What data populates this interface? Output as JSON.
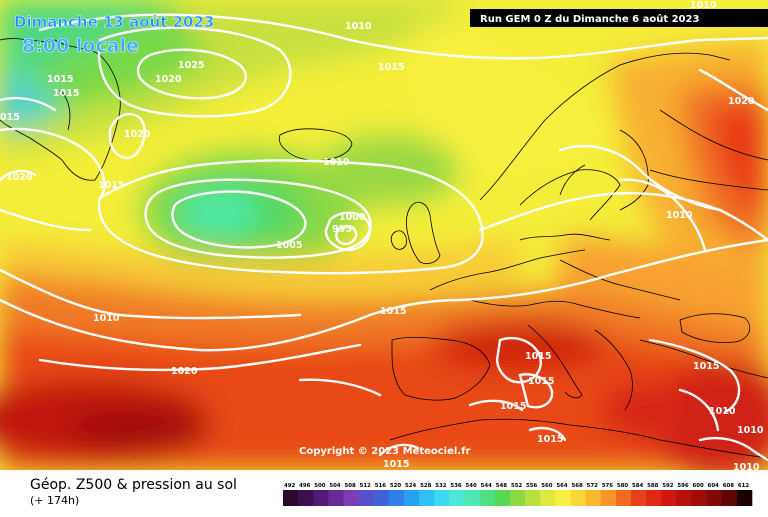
{
  "header": {
    "date_line": "Dimanche 13 août 2023",
    "time_line": "8:00 locale"
  },
  "run_info": "Run GEM 0 Z du Dimanche 6 août 2023",
  "copyright": "Copyright © 2023 Meteociel.fr",
  "legend": {
    "title": "Géop. Z500 & pression au sol",
    "subtitle": "(+ 174h)",
    "units_visible": false,
    "ticks": [
      "492",
      "496",
      "500",
      "504",
      "508",
      "512",
      "516",
      "520",
      "524",
      "528",
      "532",
      "536",
      "540",
      "544",
      "548",
      "552",
      "556",
      "560",
      "564",
      "568",
      "572",
      "576",
      "580",
      "584",
      "588",
      "592",
      "596",
      "600",
      "604",
      "608",
      "612"
    ],
    "colors": [
      "#2a0a2a",
      "#3c1050",
      "#531a75",
      "#6a2a95",
      "#7a3db2",
      "#5a4fc8",
      "#3e63d8",
      "#2f80e8",
      "#2aa0f0",
      "#2fc0f5",
      "#3fd8f0",
      "#4fe8d8",
      "#50e8b0",
      "#4fe080",
      "#5ad855",
      "#8cd845",
      "#b8e040",
      "#dfe840",
      "#f8f040",
      "#f8d838",
      "#f8b830",
      "#f89428",
      "#f06a20",
      "#e84018",
      "#e02814",
      "#d01810",
      "#b8100c",
      "#a00c0a",
      "#800808",
      "#600606",
      "#1a0000"
    ]
  },
  "isobars": {
    "labels": [
      {
        "id": "l01",
        "value": "1010"
      },
      {
        "id": "l02",
        "value": "1025"
      },
      {
        "id": "l03",
        "value": "1015"
      },
      {
        "id": "l04",
        "value": "1015"
      },
      {
        "id": "l05",
        "value": "1015"
      },
      {
        "id": "l06",
        "value": "1020"
      },
      {
        "id": "l07",
        "value": "015"
      },
      {
        "id": "l08",
        "value": "1020"
      },
      {
        "id": "l09",
        "value": "1020"
      },
      {
        "id": "l10",
        "value": "1015"
      },
      {
        "id": "l11",
        "value": "1010"
      },
      {
        "id": "l12",
        "value": "1010"
      },
      {
        "id": "l13",
        "value": "1000"
      },
      {
        "id": "l14",
        "value": "995"
      },
      {
        "id": "l15",
        "value": "1005"
      },
      {
        "id": "l16",
        "value": "1020"
      },
      {
        "id": "l17",
        "value": "1010"
      },
      {
        "id": "l18",
        "value": "1010"
      },
      {
        "id": "l19",
        "value": "1015"
      },
      {
        "id": "l20",
        "value": "1015"
      },
      {
        "id": "l21",
        "value": "1015"
      },
      {
        "id": "l22",
        "value": "1015"
      },
      {
        "id": "l23",
        "value": "1015"
      },
      {
        "id": "l24",
        "value": "1015"
      },
      {
        "id": "l25",
        "value": "1020"
      },
      {
        "id": "l26",
        "value": "1010"
      },
      {
        "id": "l27",
        "value": "1010"
      },
      {
        "id": "l28",
        "value": "1010"
      },
      {
        "id": "l29",
        "value": "1015"
      }
    ]
  }
}
